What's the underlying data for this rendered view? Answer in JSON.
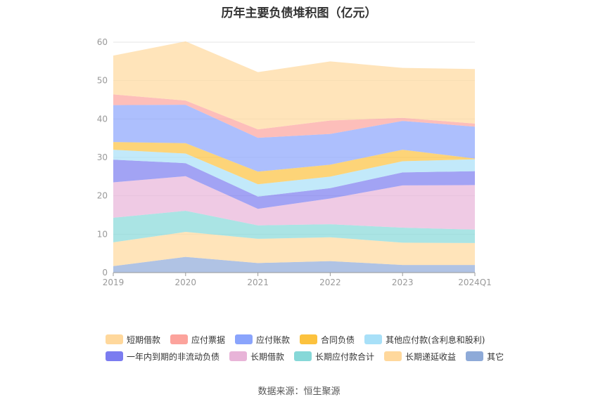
{
  "chart_data": {
    "type": "area",
    "title": "历年主要负债堆积图（亿元）",
    "categories": [
      "2019",
      "2020",
      "2021",
      "2022",
      "2023",
      "2024Q1"
    ],
    "ylim": [
      0,
      60
    ],
    "yticks": [
      0,
      10,
      20,
      30,
      40,
      50,
      60
    ],
    "grid": true,
    "stacked": true,
    "legend_position": "bottom",
    "series": [
      {
        "name": "其它",
        "color": "#8eaad8",
        "values": [
          1.7,
          4.1,
          2.5,
          3.0,
          2.0,
          2.0
        ]
      },
      {
        "name": "长期递延收益",
        "color": "#ffd89c",
        "values": [
          6.2,
          6.5,
          6.3,
          6.2,
          5.8,
          5.7
        ]
      },
      {
        "name": "长期应付款合计",
        "color": "#86d8d8",
        "values": [
          6.4,
          5.5,
          3.5,
          3.4,
          3.9,
          3.5
        ]
      },
      {
        "name": "长期借款",
        "color": "#e8b4d8",
        "values": [
          9.2,
          9.0,
          4.3,
          6.7,
          11.0,
          11.6
        ]
      },
      {
        "name": "一年内到期的非流动负债",
        "color": "#7b7cf0",
        "values": [
          5.9,
          3.4,
          3.2,
          2.7,
          3.4,
          3.6
        ]
      },
      {
        "name": "其他应付款(含利息和股利)",
        "color": "#a8e0f8",
        "values": [
          2.6,
          2.5,
          3.2,
          3.0,
          2.9,
          3.1
        ]
      },
      {
        "name": "合同负债",
        "color": "#fcc23e",
        "values": [
          2.0,
          2.7,
          3.3,
          3.1,
          3.0,
          0.2
        ]
      },
      {
        "name": "应付账款",
        "color": "#8aa4fc",
        "values": [
          9.6,
          10.0,
          8.8,
          8.0,
          7.5,
          8.3
        ]
      },
      {
        "name": "应付票据",
        "color": "#fca39c",
        "values": [
          2.8,
          1.1,
          2.2,
          3.5,
          0.8,
          0.8
        ]
      },
      {
        "name": "短期借款",
        "color": "#ffd89c",
        "values": [
          10.1,
          15.4,
          14.9,
          15.4,
          13.0,
          14.2
        ]
      }
    ]
  },
  "legend": {
    "row1": [
      {
        "label": "短期借款",
        "color": "#ffd89c"
      },
      {
        "label": "应付票据",
        "color": "#fca39c"
      },
      {
        "label": "应付账款",
        "color": "#8aa4fc"
      },
      {
        "label": "合同负债",
        "color": "#fcc23e"
      },
      {
        "label": "其他应付款(含利息和股利)",
        "color": "#a8e0f8"
      }
    ],
    "row2": [
      {
        "label": "一年内到期的非流动负债",
        "color": "#7b7cf0"
      },
      {
        "label": "长期借款",
        "color": "#e8b4d8"
      },
      {
        "label": "长期应付款合计",
        "color": "#86d8d8"
      },
      {
        "label": "长期递延收益",
        "color": "#ffd89c"
      },
      {
        "label": "其它",
        "color": "#8eaad8"
      }
    ]
  },
  "source": "数据来源：恒生聚源"
}
